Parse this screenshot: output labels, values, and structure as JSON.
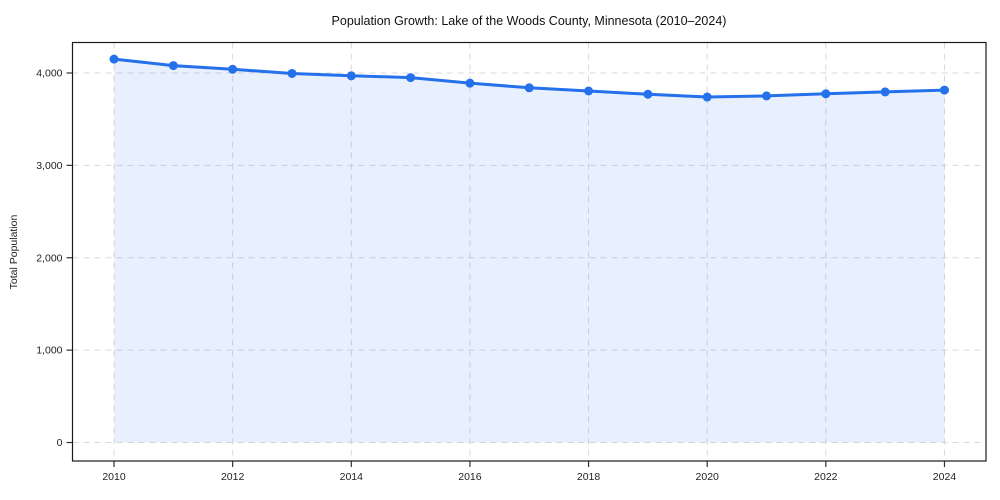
{
  "chart_data": {
    "type": "line",
    "title": "Population Growth: Lake of the Woods County, Minnesota (2010–2024)",
    "xlabel": "",
    "ylabel": "Total Population",
    "series": [
      {
        "name": "Total Population",
        "x": [
          2010,
          2011,
          2012,
          2013,
          2014,
          2015,
          2016,
          2017,
          2018,
          2019,
          2020,
          2021,
          2022,
          2023,
          2024
        ],
        "values": [
          4150,
          4080,
          4040,
          3995,
          3970,
          3950,
          3890,
          3840,
          3805,
          3770,
          3740,
          3752,
          3775,
          3795,
          3815
        ]
      }
    ],
    "area_fill": true,
    "area_baseline": 0,
    "markers": true,
    "grid": true,
    "legend": false,
    "xlim": [
      2009.3,
      2024.7
    ],
    "ylim": [
      -200,
      4330
    ],
    "x_ticks": [
      2010,
      2012,
      2014,
      2016,
      2018,
      2020,
      2022,
      2024
    ],
    "x_tick_labels": [
      "2010",
      "2012",
      "2014",
      "2016",
      "2018",
      "2020",
      "2022",
      "2024"
    ],
    "y_ticks": [
      0,
      1000,
      2000,
      3000,
      4000
    ],
    "y_tick_labels": [
      "0",
      "1,000",
      "2,000",
      "3,000",
      "4,000"
    ],
    "colors": {
      "line": "#2570eb",
      "fill": "#2570eb",
      "grid": "#d9d9d9",
      "spine": "#1a1a1a",
      "background": "#ffffff"
    },
    "fill_opacity": 0.1,
    "line_width": 3,
    "marker_radius": 4.5
  }
}
